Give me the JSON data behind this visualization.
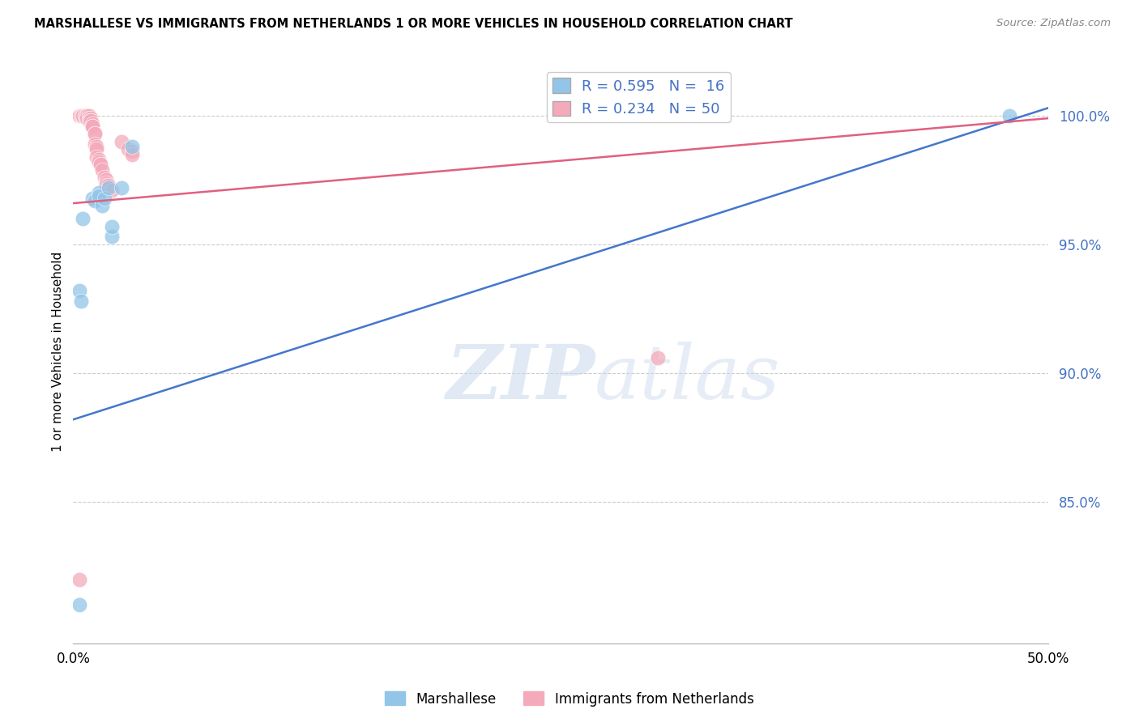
{
  "title": "MARSHALLESE VS IMMIGRANTS FROM NETHERLANDS 1 OR MORE VEHICLES IN HOUSEHOLD CORRELATION CHART",
  "source": "Source: ZipAtlas.com",
  "ylabel": "1 or more Vehicles in Household",
  "ytick_labels": [
    "100.0%",
    "95.0%",
    "90.0%",
    "85.0%"
  ],
  "ytick_values": [
    1.0,
    0.95,
    0.9,
    0.85
  ],
  "xlim": [
    0.0,
    0.5
  ],
  "ylim": [
    0.795,
    1.022
  ],
  "watermark_zip": "ZIP",
  "watermark_atlas": "atlas",
  "legend_blue_r": "R = 0.595",
  "legend_blue_n": "N =  16",
  "legend_pink_r": "R = 0.234",
  "legend_pink_n": "N = 50",
  "blue_color": "#92C5E8",
  "pink_color": "#F4AABB",
  "blue_line_color": "#4477CC",
  "pink_line_color": "#E06080",
  "blue_points": [
    [
      0.003,
      0.932
    ],
    [
      0.004,
      0.928
    ],
    [
      0.005,
      0.96
    ],
    [
      0.01,
      0.968
    ],
    [
      0.011,
      0.967
    ],
    [
      0.013,
      0.97
    ],
    [
      0.013,
      0.969
    ],
    [
      0.015,
      0.965
    ],
    [
      0.016,
      0.968
    ],
    [
      0.018,
      0.972
    ],
    [
      0.02,
      0.953
    ],
    [
      0.02,
      0.957
    ],
    [
      0.025,
      0.972
    ],
    [
      0.03,
      0.988
    ],
    [
      0.48,
      1.0
    ],
    [
      0.003,
      0.81
    ]
  ],
  "pink_points": [
    [
      0.003,
      1.0
    ],
    [
      0.003,
      1.0
    ],
    [
      0.004,
      1.0
    ],
    [
      0.004,
      1.0
    ],
    [
      0.004,
      1.0
    ],
    [
      0.005,
      1.0
    ],
    [
      0.005,
      1.0
    ],
    [
      0.005,
      1.0
    ],
    [
      0.005,
      1.0
    ],
    [
      0.005,
      1.0
    ],
    [
      0.006,
      1.0
    ],
    [
      0.006,
      1.0
    ],
    [
      0.006,
      1.0
    ],
    [
      0.007,
      1.0
    ],
    [
      0.007,
      1.0
    ],
    [
      0.007,
      1.0
    ],
    [
      0.007,
      0.999
    ],
    [
      0.008,
      1.0
    ],
    [
      0.008,
      0.999
    ],
    [
      0.008,
      0.998
    ],
    [
      0.009,
      0.999
    ],
    [
      0.009,
      0.998
    ],
    [
      0.009,
      0.998
    ],
    [
      0.01,
      0.997
    ],
    [
      0.01,
      0.996
    ],
    [
      0.01,
      0.996
    ],
    [
      0.01,
      0.996
    ],
    [
      0.011,
      0.993
    ],
    [
      0.011,
      0.993
    ],
    [
      0.011,
      0.989
    ],
    [
      0.012,
      0.988
    ],
    [
      0.012,
      0.987
    ],
    [
      0.012,
      0.984
    ],
    [
      0.013,
      0.983
    ],
    [
      0.013,
      0.982
    ],
    [
      0.014,
      0.981
    ],
    [
      0.014,
      0.981
    ],
    [
      0.015,
      0.979
    ],
    [
      0.016,
      0.976
    ],
    [
      0.017,
      0.975
    ],
    [
      0.017,
      0.974
    ],
    [
      0.017,
      0.973
    ],
    [
      0.018,
      0.973
    ],
    [
      0.02,
      0.971
    ],
    [
      0.025,
      0.99
    ],
    [
      0.028,
      0.987
    ],
    [
      0.03,
      0.986
    ],
    [
      0.03,
      0.985
    ],
    [
      0.3,
      0.906
    ],
    [
      0.003,
      0.82
    ]
  ],
  "blue_line_x": [
    0.0,
    0.5
  ],
  "blue_line_y": [
    0.882,
    1.003
  ],
  "pink_line_x": [
    0.0,
    0.5
  ],
  "pink_line_y": [
    0.966,
    0.999
  ]
}
